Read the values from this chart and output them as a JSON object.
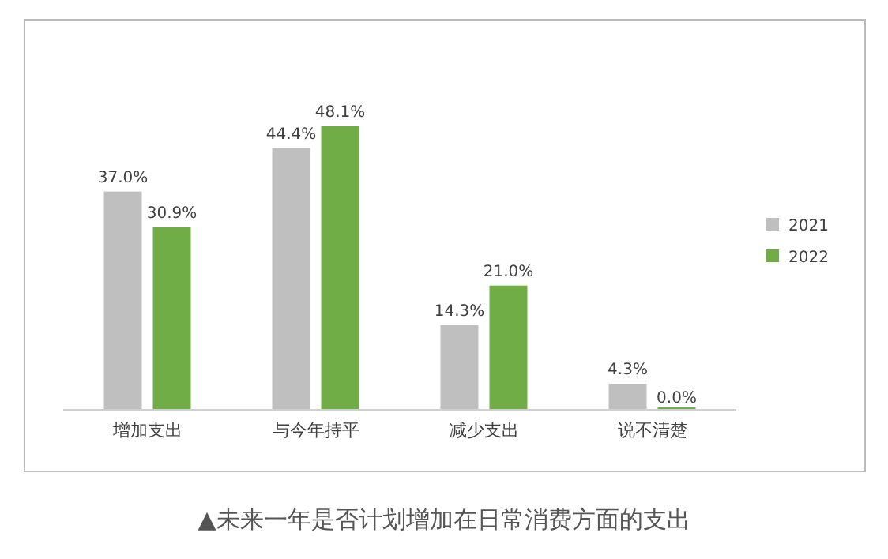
{
  "chart_data": {
    "type": "bar",
    "categories": [
      "增加支出",
      "与今年持平",
      "减少支出",
      "说不清楚"
    ],
    "series": [
      {
        "name": "2021",
        "color": "#bfbfbf",
        "values": [
          37.0,
          44.4,
          14.3,
          4.3
        ],
        "value_labels": [
          "37.0%",
          "44.4%",
          "14.3%",
          "4.3%"
        ]
      },
      {
        "name": "2022",
        "color": "#70ad47",
        "values": [
          30.9,
          48.1,
          21.0,
          0.0
        ],
        "value_labels": [
          "30.9%",
          "48.1%",
          "21.0%",
          "0.0%"
        ]
      }
    ],
    "legend": "right",
    "grid": false,
    "annotations": [
      "▲未来一年是否计划增加在日常消费方面的支出"
    ]
  }
}
